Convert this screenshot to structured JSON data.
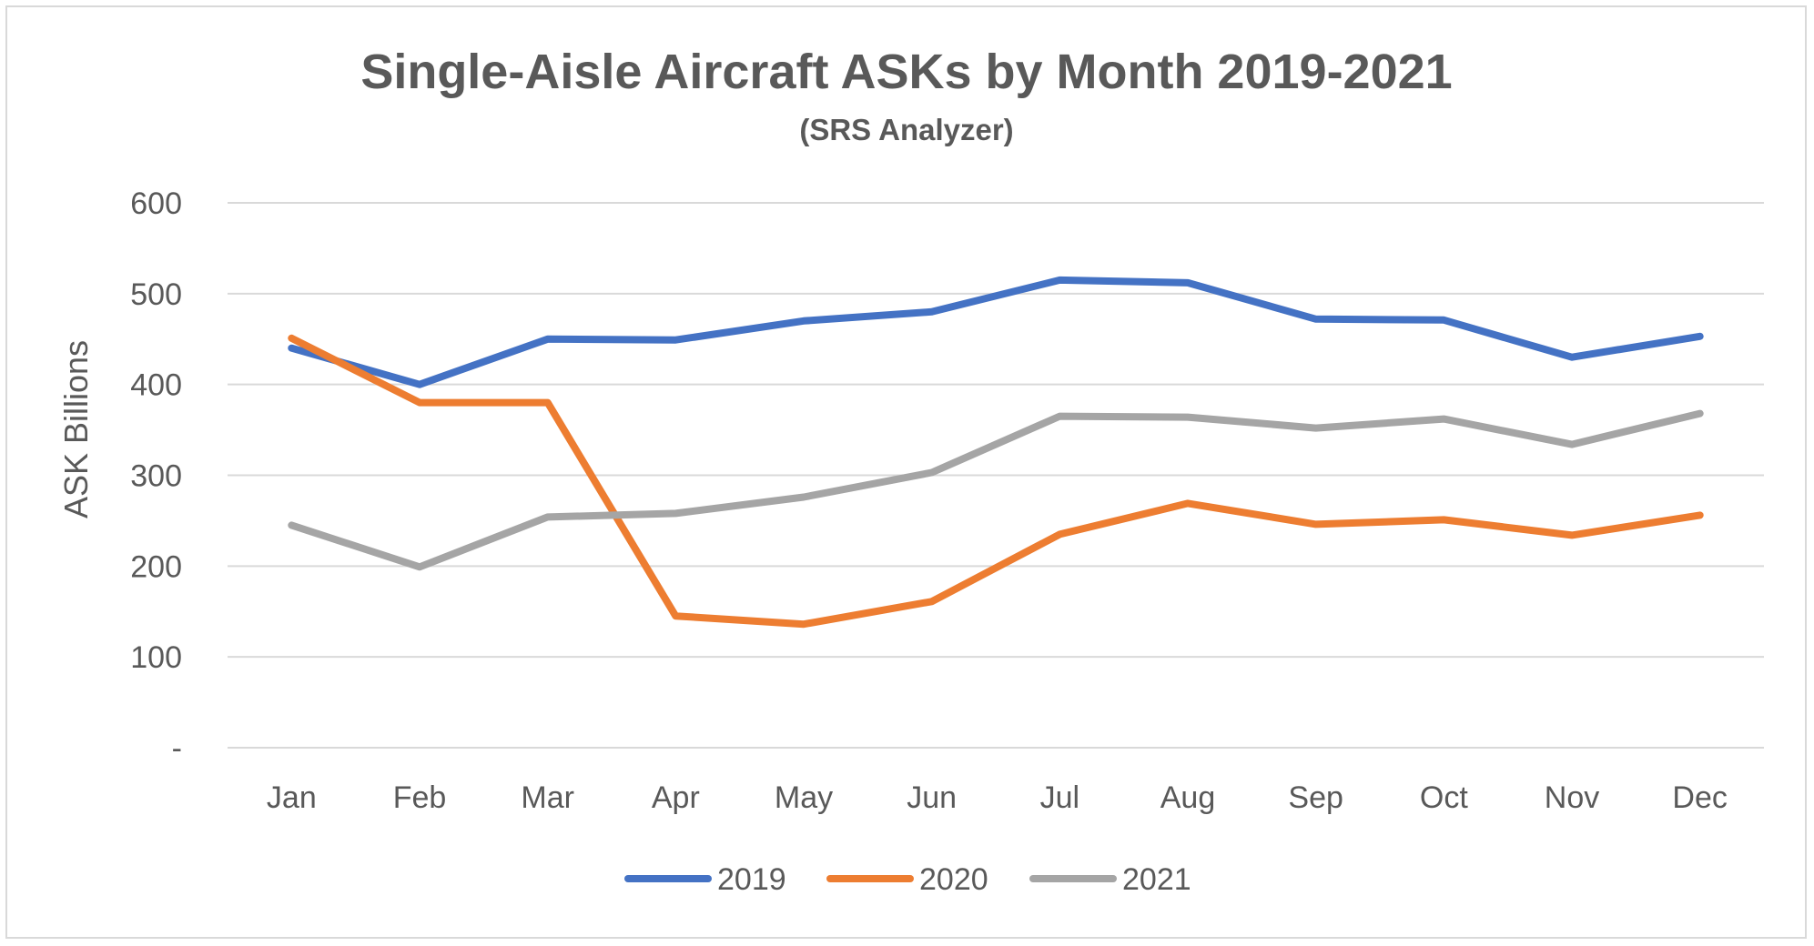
{
  "chart_data": {
    "type": "line",
    "title": "Single-Aisle Aircraft ASKs by Month 2019-2021",
    "subtitle": "(SRS Analyzer)",
    "xlabel": "",
    "ylabel": "ASK Billions",
    "ylim": [
      0,
      600
    ],
    "yticks": [
      0,
      100,
      200,
      300,
      400,
      500,
      600
    ],
    "ytick_labels": [
      "-",
      "100",
      "200",
      "300",
      "400",
      "500",
      "600"
    ],
    "categories": [
      "Jan",
      "Feb",
      "Mar",
      "Apr",
      "May",
      "Jun",
      "Jul",
      "Aug",
      "Sep",
      "Oct",
      "Nov",
      "Dec"
    ],
    "grid": "horizontal",
    "legend_position": "bottom",
    "series": [
      {
        "name": "2019",
        "color": "#4472c4",
        "values": [
          440,
          400,
          450,
          449,
          470,
          480,
          515,
          512,
          472,
          471,
          430,
          453
        ]
      },
      {
        "name": "2020",
        "color": "#ed7d31",
        "values": [
          451,
          380,
          380,
          145,
          136,
          161,
          235,
          269,
          246,
          251,
          234,
          256
        ]
      },
      {
        "name": "2021",
        "color": "#a5a5a5",
        "values": [
          245,
          199,
          254,
          258,
          276,
          303,
          365,
          364,
          352,
          362,
          334,
          368
        ]
      }
    ]
  }
}
